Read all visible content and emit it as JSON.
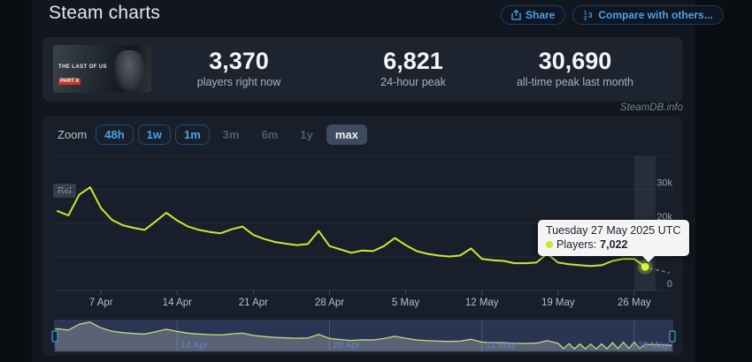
{
  "header": {
    "title": "Steam charts",
    "share_label": "Share",
    "compare_label": "Compare with others..."
  },
  "stats": {
    "game_logo_line1": "THE LAST OF US",
    "game_logo_line2": "PART II",
    "items": [
      {
        "value": "3,370",
        "label": "players right now"
      },
      {
        "value": "6,821",
        "label": "24-hour peak"
      },
      {
        "value": "30,690",
        "label": "all-time peak last month"
      }
    ]
  },
  "watermark": "SteamDB.info",
  "toolbar": {
    "zoom_label": "Zoom",
    "buttons": [
      {
        "label": "48h",
        "state": "enabled"
      },
      {
        "label": "1w",
        "state": "enabled"
      },
      {
        "label": "1m",
        "state": "enabled"
      },
      {
        "label": "3m",
        "state": "disabled"
      },
      {
        "label": "6m",
        "state": "disabled"
      },
      {
        "label": "1y",
        "state": "disabled"
      },
      {
        "label": "max",
        "state": "selected"
      }
    ]
  },
  "release_flag": "Rel",
  "tooltip": {
    "title": "Tuesday 27 May 2025 UTC",
    "series_label": "Players:",
    "value": "7,022"
  },
  "chart_data": {
    "type": "line",
    "series_name": "Players",
    "line_color": "#c9ea2c",
    "ylim": [
      0,
      40000
    ],
    "gridline_values": [
      0,
      10000,
      20000,
      30000,
      40000
    ],
    "x": [
      "3 Apr",
      "4 Apr",
      "5 Apr",
      "6 Apr",
      "7 Apr",
      "8 Apr",
      "9 Apr",
      "10 Apr",
      "11 Apr",
      "12 Apr",
      "13 Apr",
      "14 Apr",
      "15 Apr",
      "16 Apr",
      "17 Apr",
      "18 Apr",
      "19 Apr",
      "20 Apr",
      "21 Apr",
      "22 Apr",
      "23 Apr",
      "24 Apr",
      "25 Apr",
      "26 Apr",
      "27 Apr",
      "28 Apr",
      "29 Apr",
      "30 Apr",
      "1 May",
      "2 May",
      "3 May",
      "4 May",
      "5 May",
      "6 May",
      "7 May",
      "8 May",
      "9 May",
      "10 May",
      "11 May",
      "12 May",
      "13 May",
      "14 May",
      "15 May",
      "16 May",
      "17 May",
      "18 May",
      "19 May",
      "20 May",
      "21 May",
      "22 May",
      "23 May",
      "24 May",
      "25 May",
      "26 May",
      "27 May"
    ],
    "values": [
      23600,
      22300,
      28500,
      30690,
      24500,
      21000,
      19400,
      18600,
      18000,
      20500,
      23100,
      20800,
      19000,
      18000,
      17400,
      17000,
      18200,
      19000,
      16500,
      15300,
      14400,
      13900,
      13500,
      13800,
      17700,
      13200,
      12200,
      11200,
      11900,
      11700,
      13200,
      15600,
      13500,
      11700,
      10900,
      10400,
      10100,
      10400,
      12500,
      9400,
      9000,
      8800,
      8100,
      8100,
      8300,
      10900,
      8300,
      7800,
      7500,
      7300,
      7500,
      8800,
      9400,
      9400,
      7022
    ],
    "x_ticks": [
      {
        "label": "7 Apr",
        "index": 4
      },
      {
        "label": "14 Apr",
        "index": 11
      },
      {
        "label": "21 Apr",
        "index": 18
      },
      {
        "label": "28 Apr",
        "index": 25
      },
      {
        "label": "5 May",
        "index": 32
      },
      {
        "label": "12 May",
        "index": 39
      },
      {
        "label": "19 May",
        "index": 46
      },
      {
        "label": "26 May",
        "index": 53
      }
    ],
    "y_ticks": [
      {
        "label": "0",
        "value": 0
      },
      {
        "label": "10k",
        "value": 10000
      },
      {
        "label": "20k",
        "value": 20000
      },
      {
        "label": "30k",
        "value": 30000
      }
    ],
    "selected_point": {
      "index": 54,
      "label": "Tuesday 27 May 2025 UTC",
      "value": 7022,
      "display": "7,022"
    },
    "navigator_ticks": [
      {
        "label": "14 Apr",
        "index": 11
      },
      {
        "label": "28 Apr",
        "index": 25
      },
      {
        "label": "12 May",
        "index": 39
      },
      {
        "label": "26 May",
        "index": 53
      }
    ]
  }
}
